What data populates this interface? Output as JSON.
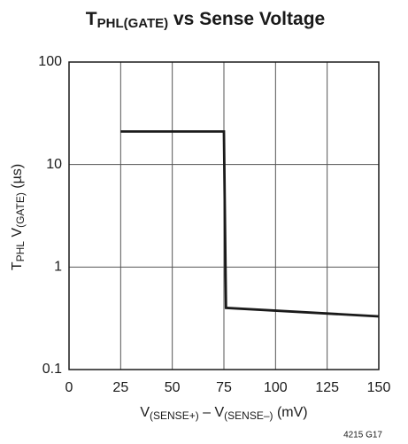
{
  "chart_data": {
    "type": "line",
    "title": {
      "main": "T",
      "sub": "PHL(GATE)",
      "rest": " vs Sense Voltage"
    },
    "y_label": {
      "a": "T",
      "b": "PHL",
      "c": " V",
      "d": "(GATE)",
      "e": " (µs)"
    },
    "x_label": {
      "a": "V",
      "b": "(SENSE+)",
      "c": " – V",
      "d": "(SENSE–)",
      "e": " (mV)"
    },
    "note": "4215 G17",
    "x": [
      25,
      75,
      76,
      150
    ],
    "values": [
      21,
      21,
      0.4,
      0.33
    ],
    "color": "#1a1a1a",
    "xlim": [
      0,
      150
    ],
    "xticks": [
      0,
      25,
      50,
      75,
      100,
      125,
      150
    ],
    "ylim": [
      0.1,
      100
    ],
    "yticks": [
      0.1,
      1,
      10,
      100
    ],
    "ylog": true,
    "grid": true
  }
}
